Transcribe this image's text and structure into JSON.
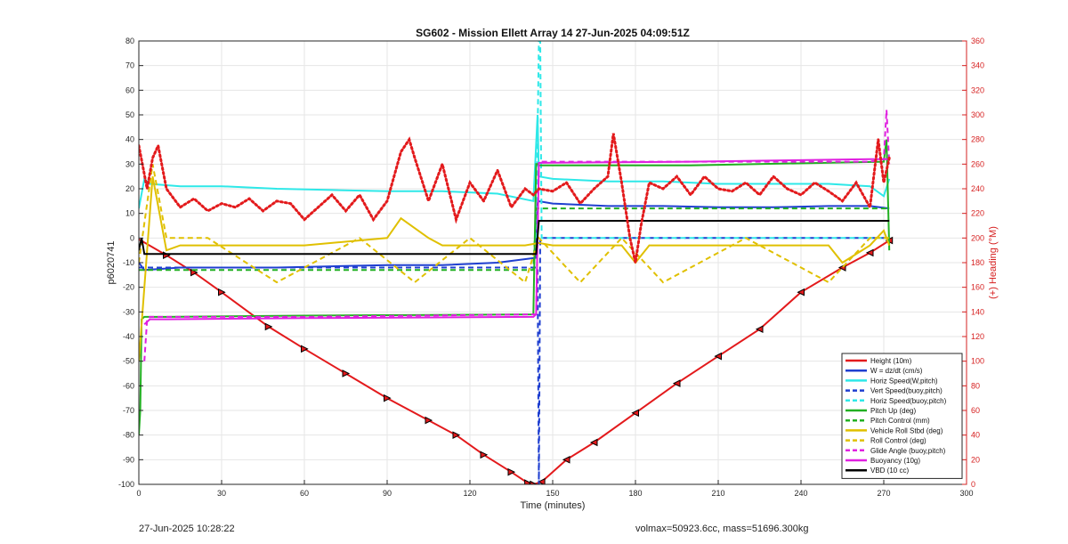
{
  "chart_data": {
    "type": "line",
    "title": "SG602 - Mission Ellett Array 14 27-Jun-2025 04:09:51Z",
    "xlabel": "Time (minutes)",
    "ylabel": "p6020741",
    "y2label": "(+) Heading (°M)",
    "xlim": [
      0,
      300
    ],
    "ylim": [
      -100,
      80
    ],
    "y2lim": [
      0,
      360
    ],
    "x_ticks": [
      0,
      30,
      60,
      90,
      120,
      150,
      180,
      210,
      240,
      270,
      300
    ],
    "y_ticks": [
      -100,
      -90,
      -80,
      -70,
      -60,
      -50,
      -40,
      -30,
      -20,
      -10,
      0,
      10,
      20,
      30,
      40,
      50,
      60,
      70,
      80
    ],
    "y2_ticks": [
      0,
      20,
      40,
      60,
      80,
      100,
      120,
      140,
      160,
      180,
      200,
      220,
      240,
      260,
      280,
      300,
      320,
      340,
      360
    ],
    "grid": true,
    "legend_position": "bottom-right",
    "legend": [
      {
        "label": "Height (10m)",
        "color": "#e31a1c",
        "dash": "solid"
      },
      {
        "label": "W = dz/dt (cm/s)",
        "color": "#1f3fd0",
        "dash": "solid"
      },
      {
        "label": "Horiz Speed(W,pitch)",
        "color": "#2ee8e8",
        "dash": "solid"
      },
      {
        "label": "Vert Speed(buoy,pitch)",
        "color": "#1f3fd0",
        "dash": "dashed"
      },
      {
        "label": "Horiz Speed(buoy,pitch)",
        "color": "#2ee8e8",
        "dash": "dashed"
      },
      {
        "label": "Pitch Up (deg)",
        "color": "#22b022",
        "dash": "solid"
      },
      {
        "label": "Pitch Control (mm)",
        "color": "#22b022",
        "dash": "dashed"
      },
      {
        "label": "Vehicle Roll Stbd (deg)",
        "color": "#e0c000",
        "dash": "solid"
      },
      {
        "label": "Roll Control (deg)",
        "color": "#e0c000",
        "dash": "dashed"
      },
      {
        "label": "Glide Angle (buoy,pitch)",
        "color": "#e020e0",
        "dash": "dashed"
      },
      {
        "label": "Buoyancy (10g)",
        "color": "#e020e0",
        "dash": "solid"
      },
      {
        "label": "VBD (10 cc)",
        "color": "#000000",
        "dash": "solid"
      }
    ],
    "series": [
      {
        "name": "Height (10m)",
        "color": "#e31a1c",
        "x": [
          0,
          10,
          20,
          30,
          47,
          60,
          75,
          90,
          105,
          115,
          125,
          135,
          141,
          143,
          146,
          155,
          165,
          180,
          195,
          210,
          225,
          240,
          255,
          265,
          272
        ],
        "y": [
          -0.5,
          -7,
          -14,
          -22,
          -36,
          -45,
          -55,
          -65,
          -74,
          -80,
          -88,
          -95,
          -99.5,
          -100,
          -99,
          -90,
          -83,
          -71,
          -59,
          -48,
          -37,
          -22,
          -12,
          -6,
          -1
        ]
      },
      {
        "name": "W = dz/dt (cm/s)",
        "color": "#1f3fd0",
        "x": [
          0,
          2,
          15,
          30,
          50,
          70,
          90,
          110,
          130,
          144,
          144.5,
          150,
          170,
          190,
          210,
          230,
          250,
          265,
          272
        ],
        "y": [
          -10,
          -13,
          -12,
          -12,
          -12,
          -11.5,
          -11,
          -11,
          -10,
          -8,
          15,
          14,
          13,
          13,
          12.5,
          12.5,
          13,
          13,
          12
        ]
      },
      {
        "name": "Horiz Speed(W,pitch)",
        "color": "#2ee8e8",
        "x": [
          0,
          2,
          4,
          15,
          30,
          50,
          70,
          90,
          110,
          130,
          143,
          144.5,
          145,
          150,
          170,
          190,
          210,
          230,
          250,
          265,
          270,
          272
        ],
        "y": [
          12,
          24,
          22,
          21,
          21,
          20,
          19.5,
          19,
          19,
          18,
          15,
          50,
          25,
          24,
          23,
          23,
          22,
          22,
          22,
          21,
          17,
          24
        ]
      },
      {
        "name": "Vert Speed(buoy,pitch)",
        "color": "#1f3fd0",
        "dash": "dashed",
        "x": [
          0,
          143.5,
          144.5,
          145,
          145.5,
          150,
          272
        ],
        "y": [
          -12,
          -12,
          -12,
          -100,
          0,
          0,
          0
        ]
      },
      {
        "name": "Horiz Speed(buoy,pitch)",
        "color": "#2ee8e8",
        "dash": "dashed",
        "x": [
          144,
          145,
          145.5,
          146,
          272
        ],
        "y": [
          0,
          80,
          80,
          0,
          0
        ]
      },
      {
        "name": "Pitch Up (deg)",
        "color": "#22b022",
        "x": [
          0,
          0.5,
          1,
          2,
          10,
          60,
          143,
          144,
          144.5,
          145,
          200,
          270,
          271,
          272
        ],
        "y": [
          -80,
          -70,
          -33,
          -32,
          -32,
          -31.5,
          -31,
          30,
          30,
          29.5,
          29.5,
          31,
          40,
          -5
        ]
      },
      {
        "name": "Pitch Control (mm)",
        "color": "#22b022",
        "dash": "dashed",
        "x": [
          0,
          143,
          144,
          272
        ],
        "y": [
          -13,
          -13,
          12,
          12
        ]
      },
      {
        "name": "Vehicle Roll Stbd (deg)",
        "color": "#e0c000",
        "x": [
          0,
          5,
          10,
          15,
          30,
          60,
          90,
          95,
          105,
          110,
          140,
          145,
          150,
          175,
          180,
          185,
          220,
          250,
          255,
          265,
          270,
          272
        ],
        "y": [
          -50,
          25,
          -5,
          -3,
          -3,
          -3,
          0,
          8,
          0,
          -3,
          -3,
          -2,
          -3,
          -3,
          -10,
          -3,
          -3,
          -3,
          -10,
          -3,
          3,
          -3
        ]
      },
      {
        "name": "Roll Control (deg)",
        "color": "#e0c000",
        "dash": "dashed",
        "x": [
          0,
          5,
          10,
          25,
          50,
          80,
          100,
          120,
          140,
          145,
          160,
          175,
          190,
          220,
          250,
          265,
          272
        ],
        "y": [
          -10,
          30,
          0,
          0,
          -18,
          0,
          -18,
          0,
          -18,
          0,
          -18,
          0,
          -18,
          0,
          -18,
          0,
          0
        ]
      },
      {
        "name": "Glide Angle (buoy,pitch)",
        "color": "#e020e0",
        "dash": "dashed",
        "x": [
          2,
          3,
          4,
          10,
          60,
          143,
          144,
          145,
          200,
          265,
          270,
          271,
          272
        ],
        "y": [
          -50,
          -33,
          -32,
          -32,
          -32,
          -31,
          -31,
          31,
          31,
          31,
          32,
          52,
          30
        ]
      },
      {
        "name": "Buoyancy (10g)",
        "color": "#e020e0",
        "x": [
          2,
          4,
          10,
          60,
          143,
          144,
          145,
          200,
          265,
          272
        ],
        "y": [
          -35,
          -33,
          -33,
          -32.5,
          -32,
          -31,
          30.5,
          31,
          32,
          32
        ]
      },
      {
        "name": "VBD (10 cc)",
        "color": "#000000",
        "x": [
          0,
          1,
          2,
          143,
          144,
          145,
          200,
          272
        ],
        "y": [
          -5,
          0,
          -6.5,
          -6.5,
          -6.5,
          7,
          7,
          7
        ]
      },
      {
        "name": "Heading (°M)",
        "color": "#e31a1c",
        "axis": "right",
        "marker": "dot",
        "x": [
          0,
          3,
          5,
          7,
          10,
          15,
          20,
          25,
          30,
          35,
          40,
          45,
          50,
          55,
          60,
          65,
          70,
          75,
          80,
          85,
          90,
          95,
          98,
          100,
          105,
          110,
          115,
          120,
          125,
          130,
          135,
          140,
          143,
          145,
          150,
          155,
          160,
          165,
          170,
          172,
          175,
          178,
          180,
          182,
          185,
          190,
          195,
          200,
          205,
          210,
          215,
          220,
          225,
          230,
          235,
          240,
          245,
          250,
          255,
          260,
          265,
          268,
          270,
          272
        ],
        "y": [
          275,
          240,
          265,
          275,
          240,
          225,
          232,
          222,
          228,
          225,
          232,
          222,
          230,
          228,
          215,
          225,
          235,
          222,
          235,
          215,
          230,
          270,
          280,
          265,
          230,
          260,
          215,
          245,
          230,
          255,
          225,
          240,
          235,
          240,
          238,
          245,
          228,
          240,
          250,
          285,
          245,
          200,
          180,
          210,
          245,
          240,
          250,
          235,
          250,
          240,
          238,
          245,
          235,
          250,
          240,
          235,
          245,
          238,
          230,
          245,
          225,
          280,
          245,
          265
        ]
      }
    ]
  },
  "footer": {
    "date": "27-Jun-2025 10:28:22",
    "stats": "volmax=50923.6cc, mass=51696.300kg"
  }
}
